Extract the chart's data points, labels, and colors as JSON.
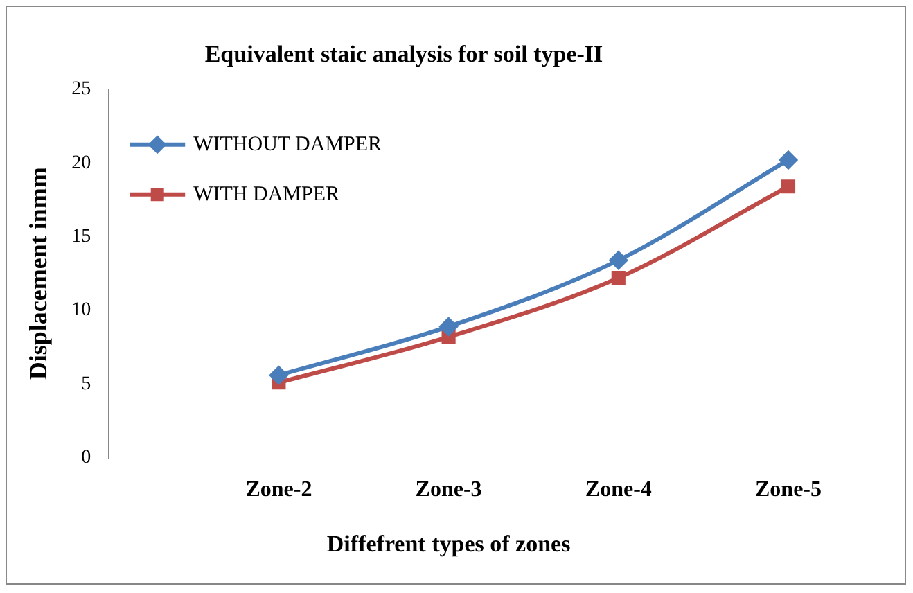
{
  "chart_data": {
    "type": "line",
    "title": "Equivalent staic analysis for soil type-II",
    "xlabel": "Diffefrent types of zones",
    "ylabel": "Displacement inmm",
    "categories": [
      null,
      "Zone-2",
      "Zone-3",
      "Zone-4",
      "Zone-5"
    ],
    "series": [
      {
        "name": "WITHOUT DAMPER",
        "color": "#4a7ebb",
        "marker": "diamond",
        "values": [
          null,
          5.6,
          8.9,
          13.4,
          20.2
        ]
      },
      {
        "name": "WITH DAMPER",
        "color": "#be4b48",
        "marker": "square",
        "values": [
          null,
          5.1,
          8.2,
          12.2,
          18.4
        ]
      }
    ],
    "ylim": [
      0,
      25
    ],
    "yticks": [
      0,
      5,
      10,
      15,
      20,
      25
    ],
    "grid": false,
    "legend": "top left",
    "line_style": "solid"
  }
}
